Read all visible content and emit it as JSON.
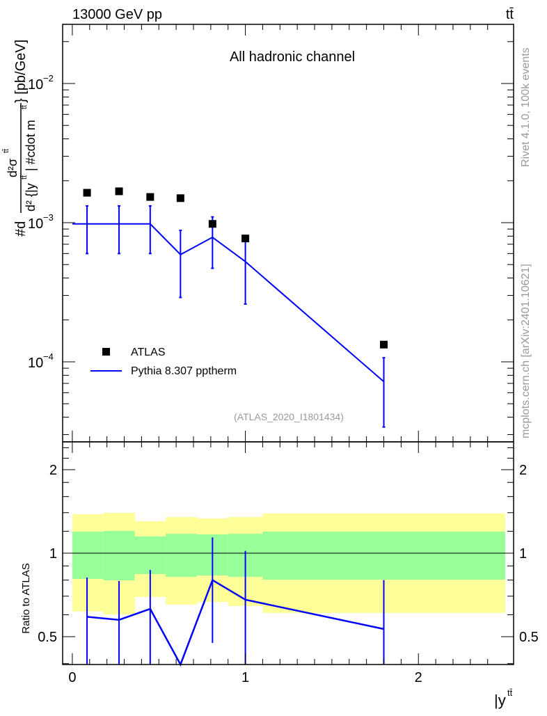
{
  "chart_data": {
    "type": "scatter",
    "header_left": "13000 GeV pp",
    "header_right": "tt̄",
    "title": "All hadronic channel",
    "ylabel": "#d d²σ^{tt̄} / d² {|y^{tt̄}| #cdot m^{tt̄}} [pb/GeV]",
    "ylabel_parts": {
      "prefix": "#d",
      "num": "d²σ",
      "num_sup": "tt̄",
      "den": "d² {|y",
      "den_sup": "tt̄",
      "den_mid": "| #cdot m",
      "den_sup2": "tt̄",
      "unit": "} [pb/GeV]"
    },
    "xlabel": "|y^{tt̄}|",
    "xlabel_text": "|y",
    "xlabel_sup": "tt̄",
    "ratio_ylabel": "Ratio to ATLAS",
    "analysis_tag": "(ATLAS_2020_I1801434)",
    "side_text_top": "Rivet 4.1.0,  100k events",
    "side_text_bottom": "mcplots.cern.ch [arXiv:2401.10621]",
    "xlim": [
      -0.056,
      2.55
    ],
    "ylim_log10": [
      -4.575,
      -1.575
    ],
    "ratio_ylim": [
      0.397,
      2.52
    ],
    "xticks": [
      {
        "v": 0,
        "label": "0"
      },
      {
        "v": 1,
        "label": "1"
      },
      {
        "v": 2,
        "label": "2"
      }
    ],
    "yticks": [
      {
        "exp": -2,
        "label": "10",
        "sup": "−2"
      },
      {
        "exp": -3,
        "label": "10",
        "sup": "−3"
      },
      {
        "exp": -4,
        "label": "10",
        "sup": "−4"
      }
    ],
    "ratio_yticks": [
      {
        "v": 0.5,
        "label": "0.5"
      },
      {
        "v": 1,
        "label": "1"
      },
      {
        "v": 2,
        "label": "2"
      }
    ],
    "bin_edges": [
      0,
      0.18,
      0.36,
      0.54,
      0.72,
      0.9,
      1.1,
      2.5
    ],
    "series": [
      {
        "name": "ATLAS",
        "style": "marker",
        "color": "#000000",
        "x": [
          0.085,
          0.27,
          0.45,
          0.625,
          0.81,
          1.0,
          1.8
        ],
        "y": [
          0.00164,
          0.00168,
          0.00153,
          0.0015,
          0.00098,
          0.00077,
          0.000133
        ]
      },
      {
        "name": "Pythia 8.307 pptherm",
        "style": "line",
        "color": "#0000ff",
        "x": [
          0.085,
          0.27,
          0.45,
          0.625,
          0.81,
          1.0,
          1.8
        ],
        "y": [
          0.00098,
          0.00098,
          0.00098,
          0.00059,
          0.000785,
          0.000525,
          7.2e-05
        ],
        "yerr_low": [
          0.0006,
          0.0006,
          0.0006,
          0.00029,
          0.00047,
          0.00026,
          3.4e-05
        ],
        "yerr_high": [
          0.00132,
          0.00132,
          0.00132,
          0.00088,
          0.0011,
          0.00077,
          0.000107
        ]
      }
    ],
    "ratio": {
      "mc": [
        0.59,
        0.575,
        0.63,
        0.39,
        0.8,
        0.68,
        0.533
      ],
      "mc_err_high": [
        0.817,
        0.794,
        0.87,
        0.39,
        1.14,
        1.02,
        0.8
      ],
      "mc_err_low": [
        0.3,
        0.3,
        0.3,
        0.3,
        0.475,
        0.3,
        0.3
      ],
      "green_high": [
        1.196,
        1.203,
        1.149,
        1.175,
        1.169,
        1.175,
        1.196
      ],
      "green_low": [
        0.808,
        0.798,
        0.841,
        0.822,
        0.831,
        0.822,
        0.803
      ],
      "yellow_high": [
        1.382,
        1.398,
        1.304,
        1.35,
        1.335,
        1.35,
        1.39
      ],
      "yellow_low": [
        0.616,
        0.601,
        0.695,
        0.652,
        0.667,
        0.645,
        0.609
      ],
      "green_color": "#99ff99",
      "yellow_color": "#ffff99"
    },
    "legend": {
      "placement": "lower-left",
      "entries": [
        "ATLAS",
        "Pythia 8.307 pptherm"
      ]
    }
  }
}
